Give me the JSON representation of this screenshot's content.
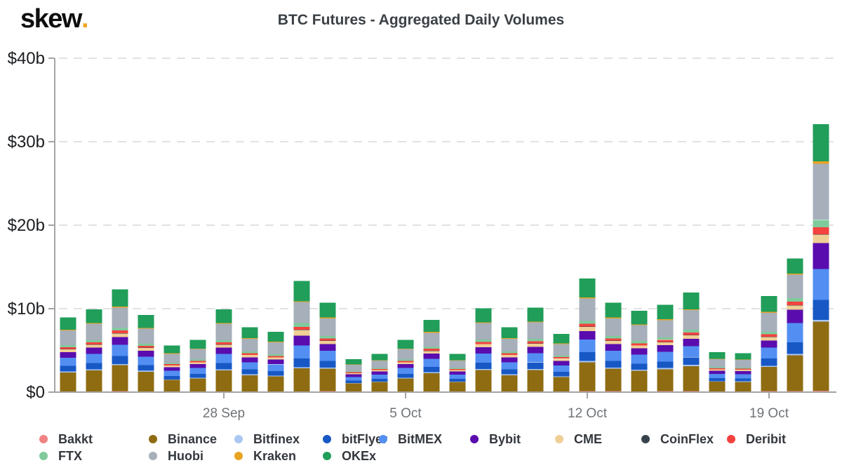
{
  "logo": {
    "text": "skew",
    "dot": "."
  },
  "header": {
    "title": "BTC Futures - Aggregated Daily Volumes"
  },
  "chart_data": {
    "type": "bar",
    "stacked": true,
    "title": "BTC Futures - Aggregated Daily Volumes",
    "unit": "USD billions",
    "ylim": [
      0,
      40
    ],
    "grid": "dashed-horizontal",
    "y_tick_values": [
      0,
      10,
      20,
      30,
      40
    ],
    "y_tick_labels": [
      "$0",
      "$10b",
      "$20b",
      "$30b",
      "$40b"
    ],
    "x_tick_indices": [
      6,
      13,
      20,
      27
    ],
    "x_tick_labels": [
      "28 Sep",
      "5 Oct",
      "12 Oct",
      "19 Oct"
    ],
    "categories": [
      "22 Sep",
      "23 Sep",
      "24 Sep",
      "25 Sep",
      "26 Sep",
      "27 Sep",
      "28 Sep",
      "29 Sep",
      "30 Sep",
      "1 Oct",
      "2 Oct",
      "3 Oct",
      "4 Oct",
      "5 Oct",
      "6 Oct",
      "7 Oct",
      "8 Oct",
      "9 Oct",
      "10 Oct",
      "11 Oct",
      "12 Oct",
      "13 Oct",
      "14 Oct",
      "15 Oct",
      "16 Oct",
      "17 Oct",
      "18 Oct",
      "19 Oct",
      "20 Oct",
      "21 Oct"
    ],
    "totals": [
      9.0,
      10.0,
      12.4,
      9.3,
      5.6,
      6.3,
      10.0,
      7.8,
      7.3,
      13.3,
      10.8,
      4.0,
      4.6,
      6.3,
      8.7,
      4.6,
      10.1,
      7.8,
      10.2,
      7.0,
      13.7,
      10.8,
      9.8,
      10.5,
      12.0,
      4.8,
      4.7,
      11.6,
      16.0,
      32.1
    ],
    "series": [
      {
        "name": "Bakkt",
        "color": "#f08283",
        "values": [
          0.09,
          0.1,
          0.12,
          0.09,
          0.06,
          0.06,
          0.1,
          0.08,
          0.07,
          0.1,
          0.11,
          0.04,
          0.05,
          0.06,
          0.09,
          0.05,
          0.1,
          0.08,
          0.1,
          0.07,
          0.14,
          0.11,
          0.1,
          0.11,
          0.12,
          0.05,
          0.05,
          0.12,
          0.12,
          0.15
        ]
      },
      {
        "name": "Binance",
        "color": "#8f6c12",
        "values": [
          2.25,
          2.5,
          3.1,
          2.33,
          1.4,
          1.58,
          2.5,
          1.95,
          1.83,
          2.75,
          2.7,
          1.0,
          1.15,
          1.58,
          2.18,
          1.15,
          2.53,
          1.95,
          2.55,
          1.75,
          3.43,
          2.7,
          2.45,
          2.63,
          3.0,
          1.2,
          1.18,
          2.9,
          4.3,
          8.3
        ]
      },
      {
        "name": "Bitfinex",
        "color": "#abc7f2",
        "values": [
          0.12,
          0.13,
          0.16,
          0.12,
          0.07,
          0.08,
          0.13,
          0.1,
          0.09,
          0.15,
          0.14,
          0.05,
          0.06,
          0.08,
          0.11,
          0.06,
          0.13,
          0.1,
          0.13,
          0.09,
          0.18,
          0.14,
          0.13,
          0.14,
          0.16,
          0.06,
          0.06,
          0.15,
          0.15,
          0.2
        ]
      },
      {
        "name": "bitFlyer",
        "color": "#1758c4",
        "values": [
          0.68,
          0.75,
          0.93,
          0.7,
          0.42,
          0.47,
          0.75,
          0.59,
          0.55,
          1.05,
          0.81,
          0.3,
          0.35,
          0.47,
          0.65,
          0.35,
          0.76,
          0.59,
          0.77,
          0.53,
          1.03,
          0.81,
          0.74,
          0.79,
          0.9,
          0.36,
          0.35,
          0.87,
          1.4,
          2.4
        ]
      },
      {
        "name": "BitMEX",
        "color": "#538ef2",
        "values": [
          0.99,
          1.1,
          1.36,
          1.02,
          0.62,
          0.69,
          1.1,
          0.86,
          0.8,
          1.55,
          1.19,
          0.44,
          0.51,
          0.69,
          0.96,
          0.51,
          1.11,
          0.86,
          1.12,
          0.77,
          1.51,
          1.19,
          1.08,
          1.16,
          1.32,
          0.53,
          0.52,
          1.28,
          2.3,
          3.7
        ]
      },
      {
        "name": "Bybit",
        "color": "#5a0cae",
        "values": [
          0.68,
          0.75,
          0.93,
          0.7,
          0.42,
          0.47,
          0.75,
          0.59,
          0.55,
          1.15,
          0.81,
          0.3,
          0.35,
          0.47,
          0.65,
          0.35,
          0.76,
          0.59,
          0.77,
          0.53,
          1.03,
          0.81,
          0.74,
          0.79,
          0.9,
          0.36,
          0.35,
          0.87,
          1.6,
          3.1
        ]
      },
      {
        "name": "CME",
        "color": "#f0cf96",
        "values": [
          0.32,
          0.35,
          0.43,
          0.33,
          0.2,
          0.22,
          0.35,
          0.27,
          0.26,
          0.7,
          0.38,
          0.14,
          0.16,
          0.22,
          0.3,
          0.16,
          0.35,
          0.27,
          0.36,
          0.25,
          0.48,
          0.38,
          0.34,
          0.37,
          0.42,
          0.17,
          0.16,
          0.41,
          0.5,
          1.0
        ]
      },
      {
        "name": "CoinFlex",
        "color": "#37424d",
        "values": [
          0.03,
          0.03,
          0.04,
          0.03,
          0.02,
          0.02,
          0.03,
          0.02,
          0.02,
          0.03,
          0.03,
          0.01,
          0.01,
          0.02,
          0.03,
          0.01,
          0.03,
          0.02,
          0.03,
          0.02,
          0.04,
          0.03,
          0.03,
          0.03,
          0.04,
          0.01,
          0.01,
          0.03,
          0.04,
          0.05
        ]
      },
      {
        "name": "Deribit",
        "color": "#f4423e",
        "values": [
          0.23,
          0.25,
          0.31,
          0.23,
          0.14,
          0.16,
          0.25,
          0.2,
          0.18,
          0.35,
          0.27,
          0.1,
          0.12,
          0.16,
          0.22,
          0.12,
          0.25,
          0.2,
          0.26,
          0.18,
          0.34,
          0.27,
          0.25,
          0.26,
          0.3,
          0.12,
          0.12,
          0.29,
          0.45,
          0.85
        ]
      },
      {
        "name": "FTX",
        "color": "#7fcb9c",
        "values": [
          0.24,
          0.27,
          0.33,
          0.25,
          0.15,
          0.17,
          0.27,
          0.21,
          0.2,
          0.45,
          0.29,
          0.11,
          0.12,
          0.17,
          0.23,
          0.12,
          0.27,
          0.21,
          0.28,
          0.19,
          0.37,
          0.29,
          0.26,
          0.28,
          0.32,
          0.13,
          0.13,
          0.31,
          0.4,
          0.9
        ]
      },
      {
        "name": "Huobi",
        "color": "#a6afba",
        "values": [
          1.76,
          1.95,
          2.42,
          1.81,
          1.09,
          1.23,
          1.95,
          1.52,
          1.42,
          2.5,
          2.11,
          0.78,
          0.9,
          1.23,
          1.7,
          0.9,
          1.97,
          1.52,
          1.99,
          1.37,
          2.67,
          2.11,
          1.91,
          2.05,
          2.34,
          0.94,
          0.92,
          2.26,
          2.8,
          6.7
        ]
      },
      {
        "name": "Kraken",
        "color": "#e9a322",
        "values": [
          0.09,
          0.1,
          0.12,
          0.09,
          0.06,
          0.06,
          0.1,
          0.08,
          0.07,
          0.12,
          0.11,
          0.04,
          0.05,
          0.06,
          0.09,
          0.05,
          0.1,
          0.08,
          0.1,
          0.07,
          0.14,
          0.11,
          0.1,
          0.11,
          0.12,
          0.05,
          0.05,
          0.12,
          0.15,
          0.3
        ]
      },
      {
        "name": "OKEx",
        "color": "#209e5a",
        "values": [
          1.49,
          1.65,
          2.05,
          1.53,
          0.92,
          1.04,
          1.65,
          1.29,
          1.2,
          2.4,
          1.78,
          0.66,
          0.76,
          1.04,
          1.44,
          0.76,
          1.67,
          1.29,
          1.68,
          1.16,
          2.26,
          1.78,
          1.62,
          1.73,
          1.98,
          0.79,
          0.78,
          1.91,
          1.8,
          4.45
        ]
      }
    ],
    "legend_rows": [
      [
        "Bakkt",
        "Binance",
        "Bitfinex",
        "bitFlyer",
        "BitMEX",
        "Bybit",
        "CME",
        "CoinFlex",
        "Deribit"
      ],
      [
        "FTX",
        "Huobi",
        "Kraken",
        "OKEx"
      ]
    ],
    "legend_position": "bottom"
  }
}
